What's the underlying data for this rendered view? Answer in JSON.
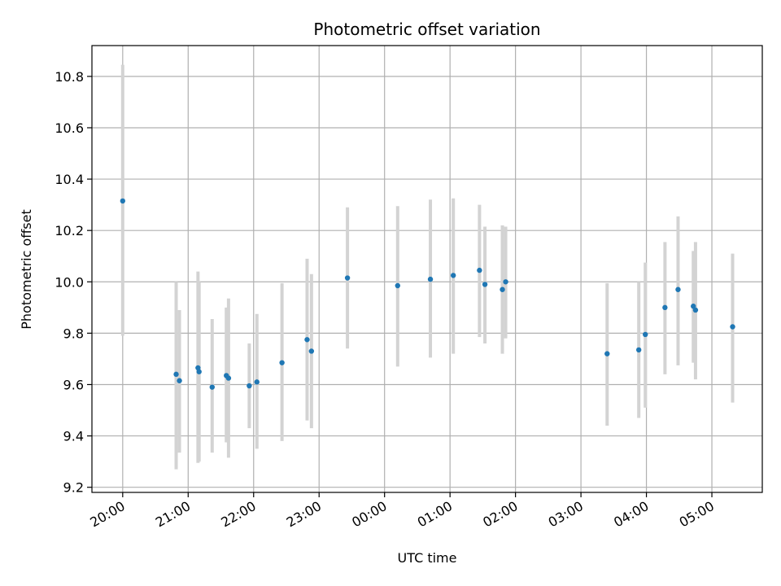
{
  "chart_data": {
    "type": "scatter",
    "title": "Photometric offset variation",
    "xlabel": "UTC time",
    "ylabel": "Photometric offset",
    "grid": true,
    "colors": {
      "point": "#1f77b4",
      "errorbar": "#d3d3d3",
      "grid": "#b0b0b0"
    },
    "x_ticks": [
      "20:00",
      "21:00",
      "22:00",
      "23:00",
      "00:00",
      "01:00",
      "02:00",
      "03:00",
      "04:00",
      "05:00"
    ],
    "x_tick_positions_hours": [
      20,
      21,
      22,
      23,
      24,
      25,
      26,
      27,
      28,
      29
    ],
    "xlim_hours": [
      19.53,
      29.77
    ],
    "y_ticks": [
      "9.2",
      "9.4",
      "9.6",
      "9.8",
      "10.0",
      "10.2",
      "10.4",
      "10.6",
      "10.8"
    ],
    "y_tick_values": [
      9.2,
      9.4,
      9.6,
      9.8,
      10.0,
      10.2,
      10.4,
      10.6,
      10.8
    ],
    "ylim": [
      9.18,
      10.92
    ],
    "series": [
      {
        "points": [
          {
            "t": "20:00",
            "y": 10.315,
            "lo": 9.79,
            "hi": 10.845
          },
          {
            "t": "20:49",
            "y": 9.64,
            "lo": 9.27,
            "hi": 10.0
          },
          {
            "t": "20:52",
            "y": 9.615,
            "lo": 9.335,
            "hi": 9.89
          },
          {
            "t": "21:09",
            "y": 9.665,
            "lo": 9.295,
            "hi": 10.04
          },
          {
            "t": "21:10",
            "y": 9.65,
            "lo": 9.3,
            "hi": 10.0
          },
          {
            "t": "21:22",
            "y": 9.59,
            "lo": 9.335,
            "hi": 9.855
          },
          {
            "t": "21:35",
            "y": 9.635,
            "lo": 9.375,
            "hi": 9.9
          },
          {
            "t": "21:37",
            "y": 9.625,
            "lo": 9.315,
            "hi": 9.935
          },
          {
            "t": "21:56",
            "y": 9.595,
            "lo": 9.43,
            "hi": 9.76
          },
          {
            "t": "22:03",
            "y": 9.61,
            "lo": 9.35,
            "hi": 9.875
          },
          {
            "t": "22:26",
            "y": 9.685,
            "lo": 9.38,
            "hi": 9.995
          },
          {
            "t": "22:49",
            "y": 9.775,
            "lo": 9.46,
            "hi": 10.09
          },
          {
            "t": "22:53",
            "y": 9.73,
            "lo": 9.43,
            "hi": 10.03
          },
          {
            "t": "23:26",
            "y": 10.015,
            "lo": 9.74,
            "hi": 10.29
          },
          {
            "t": "00:12",
            "y": 9.985,
            "lo": 9.67,
            "hi": 10.295
          },
          {
            "t": "00:42",
            "y": 10.01,
            "lo": 9.705,
            "hi": 10.32
          },
          {
            "t": "01:03",
            "y": 10.025,
            "lo": 9.72,
            "hi": 10.325
          },
          {
            "t": "01:27",
            "y": 10.045,
            "lo": 9.785,
            "hi": 10.3
          },
          {
            "t": "01:32",
            "y": 9.99,
            "lo": 9.76,
            "hi": 10.215
          },
          {
            "t": "01:48",
            "y": 9.97,
            "lo": 9.72,
            "hi": 10.22
          },
          {
            "t": "01:51",
            "y": 10.0,
            "lo": 9.78,
            "hi": 10.215
          },
          {
            "t": "03:24",
            "y": 9.72,
            "lo": 9.44,
            "hi": 9.995
          },
          {
            "t": "03:53",
            "y": 9.735,
            "lo": 9.47,
            "hi": 10.0
          },
          {
            "t": "03:59",
            "y": 9.795,
            "lo": 9.51,
            "hi": 10.075
          },
          {
            "t": "04:17",
            "y": 9.9,
            "lo": 9.64,
            "hi": 10.155
          },
          {
            "t": "04:29",
            "y": 9.97,
            "lo": 9.675,
            "hi": 10.255
          },
          {
            "t": "04:43",
            "y": 9.905,
            "lo": 9.685,
            "hi": 10.12
          },
          {
            "t": "04:45",
            "y": 9.89,
            "lo": 9.62,
            "hi": 10.155
          },
          {
            "t": "05:19",
            "y": 9.825,
            "lo": 9.53,
            "hi": 10.11
          }
        ]
      }
    ]
  }
}
